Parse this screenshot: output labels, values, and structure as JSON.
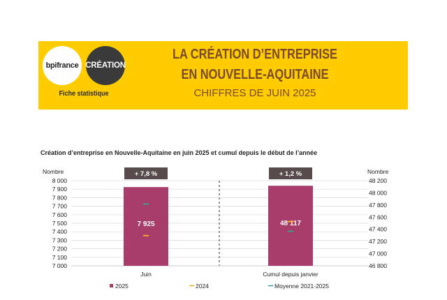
{
  "header": {
    "logo_bpi": "bpifrance",
    "logo_creation": "CRÉATION",
    "fiche": "Fiche statistique",
    "title_line1": "LA CRÉATION D’ENTREPRISE",
    "title_line2": "EN NOUVELLE-AQUITAINE",
    "title_line3": "CHIFFRES DE JUIN 2025"
  },
  "colors": {
    "banner": "#ffcc00",
    "bar_2025": "#a83c6a",
    "marker_2024": "#f5a623",
    "marker_moyenne": "#3a9e8c",
    "badge": "#574b4b"
  },
  "chart_data": {
    "type": "bar",
    "title": "Création d’entreprise en Nouvelle-Aquitaine en juin 2025 et cumul depuis le début de l’année",
    "left_axis": {
      "label": "Nombre",
      "ylim": [
        7000,
        8000
      ],
      "ticks": [
        "8 000",
        "7 900",
        "7 800",
        "7 700",
        "7 600",
        "7 500",
        "7 400",
        "7 300",
        "7 200",
        "7 100",
        "7 000"
      ]
    },
    "right_axis": {
      "label": "Nombre",
      "ylim": [
        46800,
        48200
      ],
      "ticks": [
        "48 200",
        "48 000",
        "47 800",
        "47 600",
        "47 400",
        "47 200",
        "47 000",
        "46 800"
      ]
    },
    "categories": [
      "Juin",
      "Cumul depuis janvier"
    ],
    "series": [
      {
        "name": "2025",
        "values": [
          7925,
          48117
        ],
        "value_labels": [
          "7 925",
          "48 117"
        ]
      },
      {
        "name": "2024",
        "values": [
          7355,
          47527
        ]
      },
      {
        "name": "Moyenne 2021-2025",
        "values": [
          7725,
          47367
        ]
      }
    ],
    "badges": [
      "+ 7,8 %",
      "+ 1,2 %"
    ],
    "legend": {
      "placement": "bottom",
      "entries": [
        "2025",
        "2024",
        "Moyenne 2021-2025"
      ]
    }
  }
}
